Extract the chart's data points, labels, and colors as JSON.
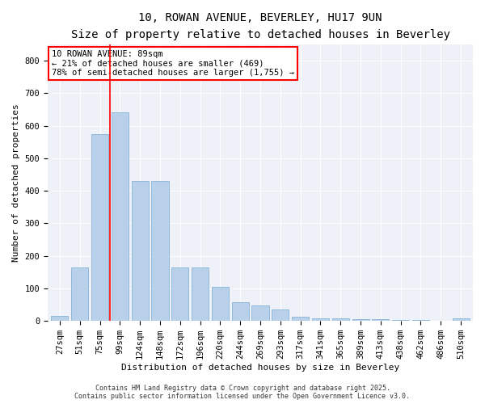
{
  "title1": "10, ROWAN AVENUE, BEVERLEY, HU17 9UN",
  "title2": "Size of property relative to detached houses in Beverley",
  "xlabel": "Distribution of detached houses by size in Beverley",
  "ylabel": "Number of detached properties",
  "categories": [
    "27sqm",
    "51sqm",
    "75sqm",
    "99sqm",
    "124sqm",
    "148sqm",
    "172sqm",
    "196sqm",
    "220sqm",
    "244sqm",
    "269sqm",
    "293sqm",
    "317sqm",
    "341sqm",
    "365sqm",
    "389sqm",
    "413sqm",
    "438sqm",
    "462sqm",
    "486sqm",
    "510sqm"
  ],
  "values": [
    15,
    165,
    575,
    640,
    430,
    430,
    165,
    165,
    105,
    58,
    48,
    35,
    14,
    8,
    8,
    6,
    5,
    4,
    2,
    1,
    8
  ],
  "bar_color": "#b8d0ea",
  "bar_edge_color": "#7aaad0",
  "vline_x_idx": 2.5,
  "vline_color": "red",
  "annotation_text": "10 ROWAN AVENUE: 89sqm\n← 21% of detached houses are smaller (469)\n78% of semi-detached houses are larger (1,755) →",
  "annotation_box_color": "white",
  "annotation_box_edge": "red",
  "ylim": [
    0,
    850
  ],
  "yticks": [
    0,
    100,
    200,
    300,
    400,
    500,
    600,
    700,
    800
  ],
  "background_color": "#eef2f8",
  "footer": "Contains HM Land Registry data © Crown copyright and database right 2025.\nContains public sector information licensed under the Open Government Licence v3.0.",
  "title1_fontsize": 10,
  "title2_fontsize": 9,
  "axis_label_fontsize": 8,
  "tick_fontsize": 7.5,
  "footer_fontsize": 6,
  "annotation_fontsize": 7.5
}
